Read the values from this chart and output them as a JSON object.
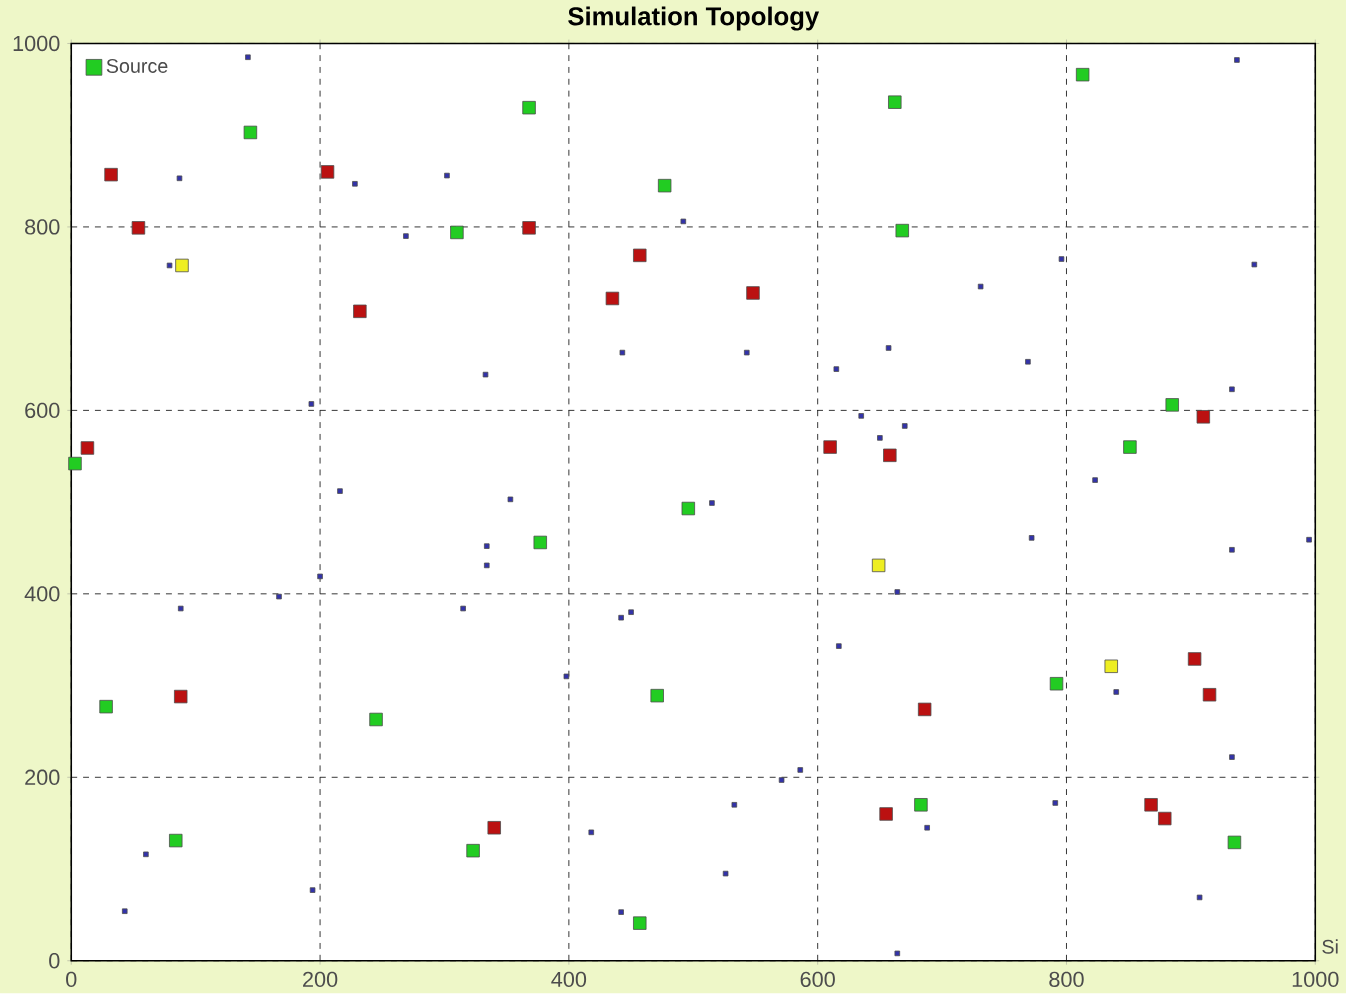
{
  "chart_data": {
    "type": "scatter",
    "title": "Simulation Topology",
    "xlim": [
      0,
      1000
    ],
    "ylim": [
      0,
      1000
    ],
    "xticks": [
      0,
      200,
      400,
      600,
      800,
      1000
    ],
    "yticks": [
      0,
      200,
      400,
      600,
      800,
      1000
    ],
    "grid": true,
    "legend": "top left",
    "marker": "square",
    "annotations": [
      "Si"
    ],
    "series": [
      {
        "name": "Source",
        "color": "#22cc22",
        "x": [
          144,
          368,
          310,
          3,
          477,
          662,
          668,
          813,
          885,
          851,
          377,
          471,
          28,
          245,
          323,
          84,
          457,
          496,
          792,
          683,
          935
        ],
        "values": [
          903,
          930,
          794,
          542,
          845,
          936,
          796,
          966,
          606,
          560,
          456,
          289,
          277,
          263,
          120,
          131,
          41,
          493,
          302,
          170,
          129
        ]
      },
      {
        "color": "#bb1111",
        "x": [
          32,
          54,
          206,
          232,
          368,
          13,
          457,
          435,
          548,
          910,
          610,
          658,
          88,
          340,
          686,
          903,
          915,
          655,
          868,
          879
        ],
        "values": [
          857,
          799,
          860,
          708,
          799,
          559,
          769,
          722,
          728,
          593,
          560,
          551,
          288,
          145,
          274,
          329,
          290,
          160,
          170,
          155
        ]
      },
      {
        "color": "#eeee22",
        "x": [
          89,
          649,
          836
        ],
        "values": [
          758,
          431,
          321
        ]
      },
      {
        "color": "#3333aa",
        "x": [
          142,
          87,
          228,
          302,
          269,
          79,
          333,
          193,
          443,
          492,
          543,
          937,
          951,
          796,
          731,
          657,
          615,
          769,
          933,
          823,
          635,
          650,
          670,
          216,
          353,
          334,
          334,
          200,
          167,
          88,
          315,
          442,
          450,
          398,
          60,
          43,
          194,
          418,
          442,
          515,
          772,
          933,
          995,
          664,
          617,
          840,
          933,
          586,
          571,
          533,
          688,
          791,
          526,
          907,
          664
        ],
        "values": [
          985,
          853,
          847,
          856,
          790,
          758,
          639,
          607,
          663,
          806,
          663,
          982,
          759,
          765,
          735,
          668,
          645,
          653,
          623,
          524,
          594,
          570,
          583,
          512,
          503,
          452,
          431,
          419,
          397,
          384,
          384,
          374,
          380,
          310,
          116,
          54,
          77,
          140,
          53,
          499,
          461,
          448,
          459,
          402,
          343,
          293,
          222,
          208,
          197,
          170,
          145,
          172,
          95,
          69,
          8
        ]
      }
    ]
  }
}
